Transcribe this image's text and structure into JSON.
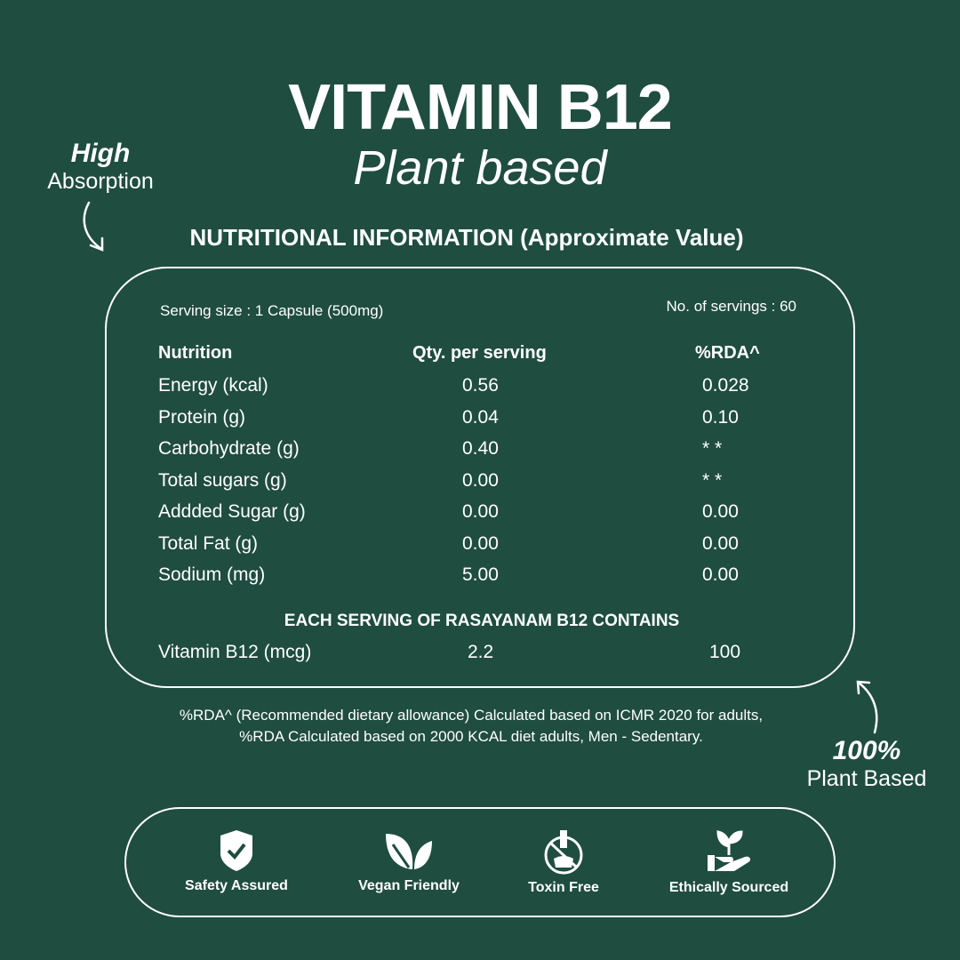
{
  "title": "VITAMIN B12",
  "subtitle": "Plant based",
  "left_callout": {
    "bold": "High",
    "text": "Absorption"
  },
  "right_callout": {
    "bold": "100%",
    "text": "Plant Based"
  },
  "heading": "NUTRITIONAL INFORMATION (Approximate Value)",
  "serving_size": "Serving size : 1 Capsule (500mg)",
  "servings": "No. of servings : 60",
  "columns": [
    "Nutrition",
    "Qty. per serving",
    "%RDA^"
  ],
  "rows": [
    [
      "Energy (kcal)",
      "0.56",
      "0.028"
    ],
    [
      "Protein (g)",
      "0.04",
      "0.10"
    ],
    [
      "Carbohydrate (g)",
      "0.40",
      "* *"
    ],
    [
      "Total sugars (g)",
      "0.00",
      "* *"
    ],
    [
      "Addded Sugar (g)",
      "0.00",
      "0.00"
    ],
    [
      "Total Fat (g)",
      "0.00",
      "0.00"
    ],
    [
      "Sodium (mg)",
      "5.00",
      "0.00"
    ]
  ],
  "contains_heading": "EACH SERVING OF RASAYANAM B12 CONTAINS",
  "contains_row": [
    "Vitamin B12 (mcg)",
    "2.2",
    "100"
  ],
  "footnote": [
    "%RDA^ (Recommended dietary allowance) Calculated based on ICMR 2020 for adults,",
    "%RDA Calculated based on 2000 KCAL diet adults, Men - Sedentary."
  ],
  "badges": [
    {
      "icon": "shield-check-icon",
      "label": "Safety Assured"
    },
    {
      "icon": "leaf-icon",
      "label": "Vegan Friendly"
    },
    {
      "icon": "no-flask-icon",
      "label": "Toxin Free"
    },
    {
      "icon": "hand-sprout-icon",
      "label": "Ethically Sourced"
    }
  ],
  "colors": {
    "background": "#1f4d40",
    "foreground": "#ffffff"
  }
}
